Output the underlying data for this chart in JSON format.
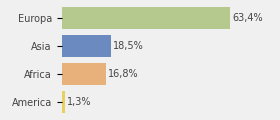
{
  "categories": [
    "Europa",
    "Asia",
    "Africa",
    "America"
  ],
  "values": [
    63.4,
    18.5,
    16.8,
    1.3
  ],
  "labels": [
    "63,4%",
    "18,5%",
    "16,8%",
    "1,3%"
  ],
  "bar_colors": [
    "#b5c98e",
    "#6b8abf",
    "#e8b07a",
    "#e8d060"
  ],
  "background_color": "#f0f0f0",
  "xlim": [
    0,
    80
  ],
  "label_fontsize": 7,
  "tick_fontsize": 7,
  "bar_height": 0.78
}
